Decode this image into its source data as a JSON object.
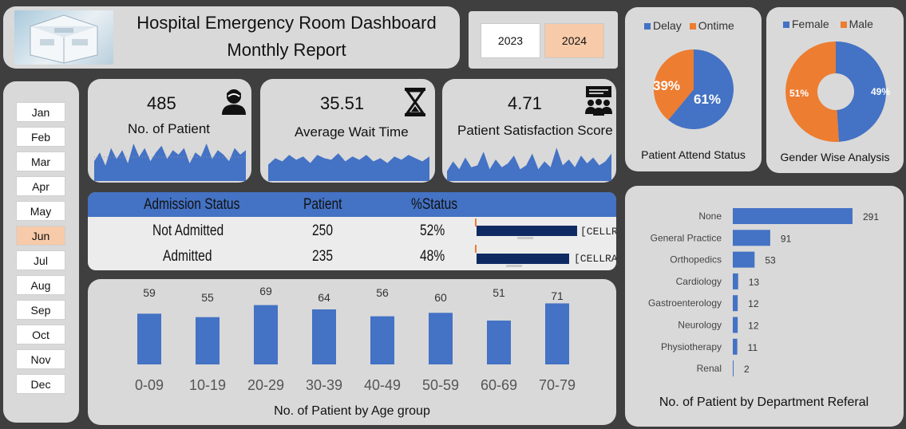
{
  "header": {
    "title": "Hospital Emergency Room Dashboard",
    "subtitle": "Monthly Report"
  },
  "years": [
    {
      "label": "2023",
      "selected": false
    },
    {
      "label": "2024",
      "selected": true
    }
  ],
  "months": [
    "Jan",
    "Feb",
    "Mar",
    "Apr",
    "May",
    "Jun",
    "Jul",
    "Aug",
    "Sep",
    "Oct",
    "Nov",
    "Dec"
  ],
  "selected_month": "Jun",
  "kpis": {
    "patients": {
      "value": "485",
      "label": "No. of Patient",
      "icon": "patient-icon"
    },
    "wait": {
      "value": "35.51",
      "label": "Average Wait Time",
      "icon": "hourglass-icon"
    },
    "satisfaction": {
      "value": "4.71",
      "label": "Patient Satisfaction Score",
      "icon": "audience-icon"
    }
  },
  "colors": {
    "blue": "#4472c4",
    "orange": "#ed7d31",
    "navy": "#0f2a63",
    "panel": "#d9d9d9",
    "bg": "#3f3f3f"
  },
  "admission": {
    "headers": [
      "Admission Status",
      "Patient",
      "%Status"
    ],
    "rows": [
      {
        "status": "Not Admitted",
        "patients": "250",
        "pct": "52%",
        "frac": 0.52,
        "cell": "[CELLRANGE]"
      },
      {
        "status": "Admitted",
        "patients": "235",
        "pct": "48%",
        "frac": 0.48,
        "cell": "[CELLRANGE]"
      }
    ]
  },
  "chart_data": [
    {
      "type": "bar",
      "title": "No. of Patient by Age group",
      "categories": [
        "0-09",
        "10-19",
        "20-29",
        "30-39",
        "40-49",
        "50-59",
        "60-69",
        "70-79"
      ],
      "values": [
        59,
        55,
        69,
        64,
        56,
        60,
        51,
        71
      ],
      "ylim": [
        0,
        80
      ]
    },
    {
      "type": "pie",
      "title": "Patient Attend Status",
      "categories": [
        "Delay",
        "Ontime"
      ],
      "values": [
        61,
        39
      ],
      "labels": [
        "61%",
        "39%"
      ],
      "legend": "top"
    },
    {
      "type": "pie",
      "title": "Gender Wise Analysis",
      "categories": [
        "Female",
        "Male"
      ],
      "values": [
        49,
        51
      ],
      "labels": [
        "49%",
        "51%"
      ],
      "legend": "top"
    },
    {
      "type": "bar",
      "title": "No. of Patient by Department Referal",
      "categories": [
        "None",
        "General Practice",
        "Orthopedics",
        "Cardiology",
        "Gastroenterology",
        "Neurology",
        "Physiotherapy",
        "Renal"
      ],
      "values": [
        291,
        91,
        53,
        13,
        12,
        12,
        11,
        2
      ]
    }
  ],
  "sparklines": {
    "patients": [
      18,
      26,
      14,
      30,
      20,
      28,
      16,
      34,
      22,
      30,
      18,
      26,
      32,
      20,
      28,
      24,
      30,
      16,
      26,
      22,
      34,
      20,
      28,
      24,
      18,
      30,
      24,
      28
    ],
    "wait": [
      10,
      14,
      12,
      16,
      13,
      15,
      11,
      16,
      14,
      13,
      17,
      12,
      15,
      13,
      16,
      12,
      14,
      11,
      15,
      13,
      16,
      14,
      12,
      15
    ],
    "satisfaction": [
      10,
      20,
      12,
      24,
      14,
      16,
      30,
      12,
      22,
      14,
      18,
      26,
      12,
      16,
      28,
      12,
      20,
      14,
      34,
      16,
      22,
      14,
      26,
      18,
      24,
      16,
      20,
      28
    ]
  }
}
